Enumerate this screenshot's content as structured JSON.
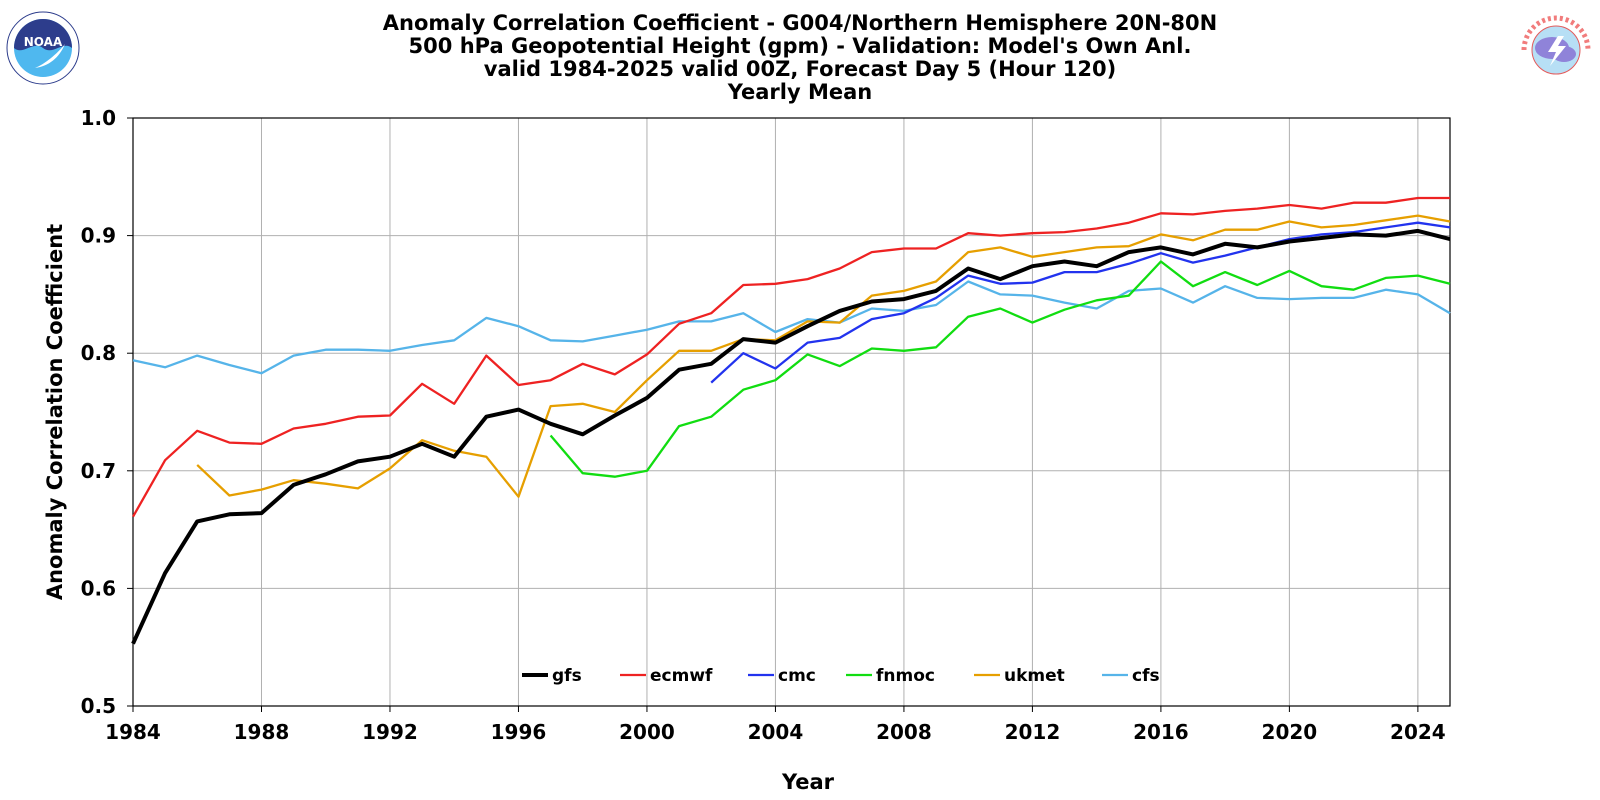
{
  "titles": [
    "Anomaly Correlation Coefficient - G004/Northern Hemisphere 20N-80N",
    "500 hPa Geopotential Height (gpm) - Validation: Model's Own Anl.",
    "valid 1984-2025 valid 00Z, Forecast Day 5 (Hour 120)",
    "Yearly Mean"
  ],
  "logos": {
    "noaa_text": "NOAA",
    "noaa_ring": "NATIONAL OCEANIC AND ATMOSPHERIC ADMINISTRATION · U.S. DEPARTMENT OF COMMERCE",
    "nws_ring": "NATIONAL WEATHER SERVICE"
  },
  "chart_data": {
    "type": "line",
    "title": "Anomaly Correlation Coefficient - G004/Northern Hemisphere 20N-80N",
    "xlabel": "Year",
    "ylabel": "Anomaly Correlation Coefficient",
    "xlim": [
      1984,
      2025
    ],
    "ylim": [
      0.5,
      1.0
    ],
    "xticks": [
      1984,
      1988,
      1992,
      1996,
      2000,
      2004,
      2008,
      2012,
      2016,
      2020,
      2024
    ],
    "yticks": [
      0.5,
      0.6,
      0.7,
      0.8,
      0.9,
      1.0
    ],
    "ytick_labels": [
      "0.5",
      "0.6",
      "0.7",
      "0.8",
      "0.9",
      "1.0"
    ],
    "grid": true,
    "legend_position": "bottom-center",
    "x": [
      1984,
      1985,
      1986,
      1987,
      1988,
      1989,
      1990,
      1991,
      1992,
      1993,
      1994,
      1995,
      1996,
      1997,
      1998,
      1999,
      2000,
      2001,
      2002,
      2003,
      2004,
      2005,
      2006,
      2007,
      2008,
      2009,
      2010,
      2011,
      2012,
      2013,
      2014,
      2015,
      2016,
      2017,
      2018,
      2019,
      2020,
      2021,
      2022,
      2023,
      2024,
      2025
    ],
    "series": [
      {
        "name": "gfs",
        "color": "#000000",
        "width": 4,
        "values": [
          0.553,
          0.613,
          0.657,
          0.663,
          0.664,
          0.688,
          0.697,
          0.708,
          0.712,
          0.723,
          0.712,
          0.746,
          0.752,
          0.74,
          0.731,
          0.747,
          0.762,
          0.786,
          0.791,
          0.812,
          0.809,
          0.823,
          0.836,
          0.844,
          0.846,
          0.853,
          0.872,
          0.863,
          0.874,
          0.878,
          0.874,
          0.886,
          0.89,
          0.884,
          0.893,
          0.89,
          0.895,
          0.898,
          0.901,
          0.9,
          0.904,
          0.897
        ]
      },
      {
        "name": "ecmwf",
        "color": "#ee2222",
        "width": 2.3,
        "values": [
          0.661,
          0.709,
          0.734,
          0.724,
          0.723,
          0.736,
          0.74,
          0.746,
          0.747,
          0.774,
          0.757,
          0.798,
          0.773,
          0.777,
          0.791,
          0.782,
          0.799,
          0.825,
          0.834,
          0.858,
          0.859,
          0.863,
          0.872,
          0.886,
          0.889,
          0.889,
          0.902,
          0.9,
          0.902,
          0.903,
          0.906,
          0.911,
          0.919,
          0.918,
          0.921,
          0.923,
          0.926,
          0.923,
          0.928,
          0.928,
          0.932,
          0.932
        ]
      },
      {
        "name": "cmc",
        "color": "#2233ee",
        "width": 2.3,
        "values": [
          null,
          null,
          null,
          null,
          null,
          null,
          null,
          null,
          null,
          null,
          null,
          null,
          null,
          null,
          null,
          null,
          null,
          null,
          0.775,
          0.8,
          0.787,
          0.809,
          0.813,
          0.829,
          0.834,
          0.847,
          0.866,
          0.859,
          0.86,
          0.869,
          0.869,
          0.876,
          0.885,
          0.877,
          0.883,
          0.89,
          0.897,
          0.901,
          0.903,
          0.907,
          0.911,
          0.907
        ]
      },
      {
        "name": "fnmoc",
        "color": "#11dd11",
        "width": 2.3,
        "values": [
          null,
          null,
          null,
          null,
          null,
          null,
          null,
          null,
          null,
          null,
          null,
          null,
          null,
          0.73,
          0.698,
          0.695,
          0.7,
          0.738,
          0.746,
          0.769,
          0.777,
          0.799,
          0.789,
          0.804,
          0.802,
          0.805,
          0.831,
          0.838,
          0.826,
          0.837,
          0.845,
          0.849,
          0.878,
          0.857,
          0.869,
          0.858,
          0.87,
          0.857,
          0.854,
          0.864,
          0.866,
          0.859
        ]
      },
      {
        "name": "ukmet",
        "color": "#e69f00",
        "width": 2.3,
        "values": [
          null,
          null,
          0.705,
          0.679,
          0.684,
          0.692,
          0.689,
          0.685,
          0.702,
          0.726,
          0.717,
          0.712,
          0.678,
          0.755,
          0.757,
          0.75,
          0.777,
          0.802,
          0.802,
          0.812,
          0.811,
          0.827,
          0.826,
          0.849,
          0.853,
          0.861,
          0.886,
          0.89,
          0.882,
          0.886,
          0.89,
          0.891,
          0.901,
          0.896,
          0.905,
          0.905,
          0.912,
          0.907,
          0.909,
          0.913,
          0.917,
          0.912
        ]
      },
      {
        "name": "cfs",
        "color": "#56b4e9",
        "width": 2.3,
        "values": [
          0.794,
          0.788,
          0.798,
          0.79,
          0.783,
          0.798,
          0.803,
          0.803,
          0.802,
          0.807,
          0.811,
          0.83,
          0.823,
          0.811,
          0.81,
          0.815,
          0.82,
          0.827,
          0.827,
          0.834,
          0.818,
          0.829,
          0.826,
          0.838,
          0.836,
          0.841,
          0.861,
          0.85,
          0.849,
          0.843,
          0.838,
          0.853,
          0.855,
          0.843,
          0.857,
          0.847,
          0.846,
          0.847,
          0.847,
          0.854,
          0.85,
          0.834
        ]
      }
    ]
  }
}
